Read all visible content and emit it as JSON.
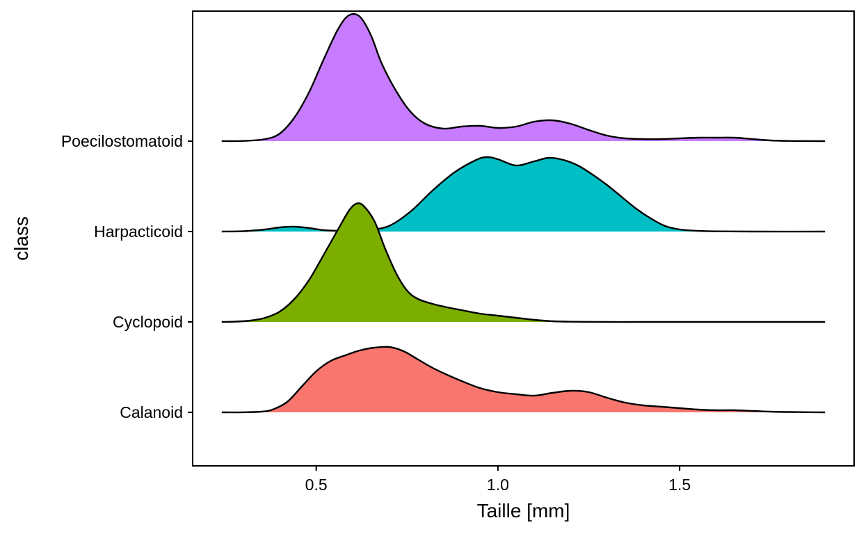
{
  "chart_data": {
    "type": "ridgeline",
    "title": "",
    "xlabel": "Taille  [mm]",
    "ylabel": "class",
    "xlim": [
      0.16,
      1.98
    ],
    "x_ticks": [
      {
        "value": 0.5,
        "label": "0.5"
      },
      {
        "value": 1.0,
        "label": "1.0"
      },
      {
        "value": 1.5,
        "label": "1.5"
      }
    ],
    "grid": false,
    "legend": "none",
    "categories": [
      "Calanoid",
      "Cyclopoid",
      "Harpacticoid",
      "Poecilostomatoid"
    ],
    "series": [
      {
        "name": "Calanoid",
        "color": "#F8766D",
        "x": [
          0.24,
          0.3,
          0.35,
          0.38,
          0.42,
          0.46,
          0.5,
          0.54,
          0.58,
          0.62,
          0.66,
          0.7,
          0.74,
          0.78,
          0.82,
          0.86,
          0.9,
          0.95,
          1.0,
          1.05,
          1.1,
          1.15,
          1.2,
          1.25,
          1.3,
          1.35,
          1.4,
          1.45,
          1.5,
          1.55,
          1.6,
          1.65,
          1.7,
          1.75,
          1.8,
          1.85,
          1.9
        ],
        "y": [
          0.0,
          0.001,
          0.01,
          0.04,
          0.15,
          0.37,
          0.59,
          0.74,
          0.82,
          0.89,
          0.93,
          0.94,
          0.88,
          0.76,
          0.64,
          0.54,
          0.45,
          0.35,
          0.29,
          0.26,
          0.24,
          0.28,
          0.31,
          0.29,
          0.21,
          0.14,
          0.1,
          0.08,
          0.06,
          0.04,
          0.03,
          0.03,
          0.02,
          0.01,
          0.005,
          0.002,
          0.0
        ]
      },
      {
        "name": "Cyclopoid",
        "color": "#7CAE00",
        "x": [
          0.24,
          0.28,
          0.32,
          0.36,
          0.4,
          0.44,
          0.48,
          0.52,
          0.56,
          0.59,
          0.61,
          0.63,
          0.66,
          0.69,
          0.72,
          0.75,
          0.78,
          0.82,
          0.86,
          0.9,
          0.95,
          1.0,
          1.05,
          1.1,
          1.15,
          1.2,
          1.3,
          1.4,
          1.6,
          1.9
        ],
        "y": [
          0.0,
          0.005,
          0.02,
          0.06,
          0.15,
          0.33,
          0.6,
          0.96,
          1.33,
          1.6,
          1.7,
          1.67,
          1.45,
          1.05,
          0.7,
          0.45,
          0.33,
          0.26,
          0.21,
          0.17,
          0.12,
          0.09,
          0.06,
          0.03,
          0.01,
          0.003,
          0.0,
          0.0,
          0.0,
          0.0
        ]
      },
      {
        "name": "Harpacticoid",
        "color": "#00BFC4",
        "x": [
          0.24,
          0.3,
          0.36,
          0.4,
          0.44,
          0.48,
          0.52,
          0.56,
          0.6,
          0.64,
          0.7,
          0.76,
          0.82,
          0.88,
          0.94,
          0.97,
          1.0,
          1.05,
          1.1,
          1.14,
          1.18,
          1.22,
          1.26,
          1.3,
          1.34,
          1.38,
          1.42,
          1.46,
          1.5,
          1.55,
          1.6,
          1.7,
          1.9
        ],
        "y": [
          0.0,
          0.005,
          0.03,
          0.06,
          0.07,
          0.05,
          0.02,
          0.01,
          0.01,
          0.02,
          0.08,
          0.29,
          0.59,
          0.85,
          1.03,
          1.07,
          1.04,
          0.95,
          1.01,
          1.06,
          1.03,
          0.95,
          0.82,
          0.67,
          0.5,
          0.33,
          0.19,
          0.08,
          0.03,
          0.01,
          0.003,
          0.0,
          0.0
        ]
      },
      {
        "name": "Poecilostomatoid",
        "color": "#C77CFF",
        "x": [
          0.24,
          0.3,
          0.36,
          0.4,
          0.44,
          0.48,
          0.52,
          0.56,
          0.59,
          0.62,
          0.65,
          0.68,
          0.72,
          0.76,
          0.8,
          0.85,
          0.9,
          0.95,
          1.0,
          1.05,
          1.1,
          1.15,
          1.2,
          1.25,
          1.3,
          1.35,
          1.4,
          1.45,
          1.5,
          1.55,
          1.6,
          1.65,
          1.7,
          1.75,
          1.8,
          1.9
        ],
        "y": [
          0.0,
          0.003,
          0.03,
          0.11,
          0.34,
          0.7,
          1.17,
          1.61,
          1.81,
          1.79,
          1.53,
          1.12,
          0.72,
          0.42,
          0.25,
          0.18,
          0.21,
          0.22,
          0.19,
          0.21,
          0.28,
          0.3,
          0.25,
          0.16,
          0.08,
          0.04,
          0.03,
          0.03,
          0.04,
          0.05,
          0.05,
          0.05,
          0.03,
          0.01,
          0.003,
          0.0
        ]
      }
    ]
  }
}
